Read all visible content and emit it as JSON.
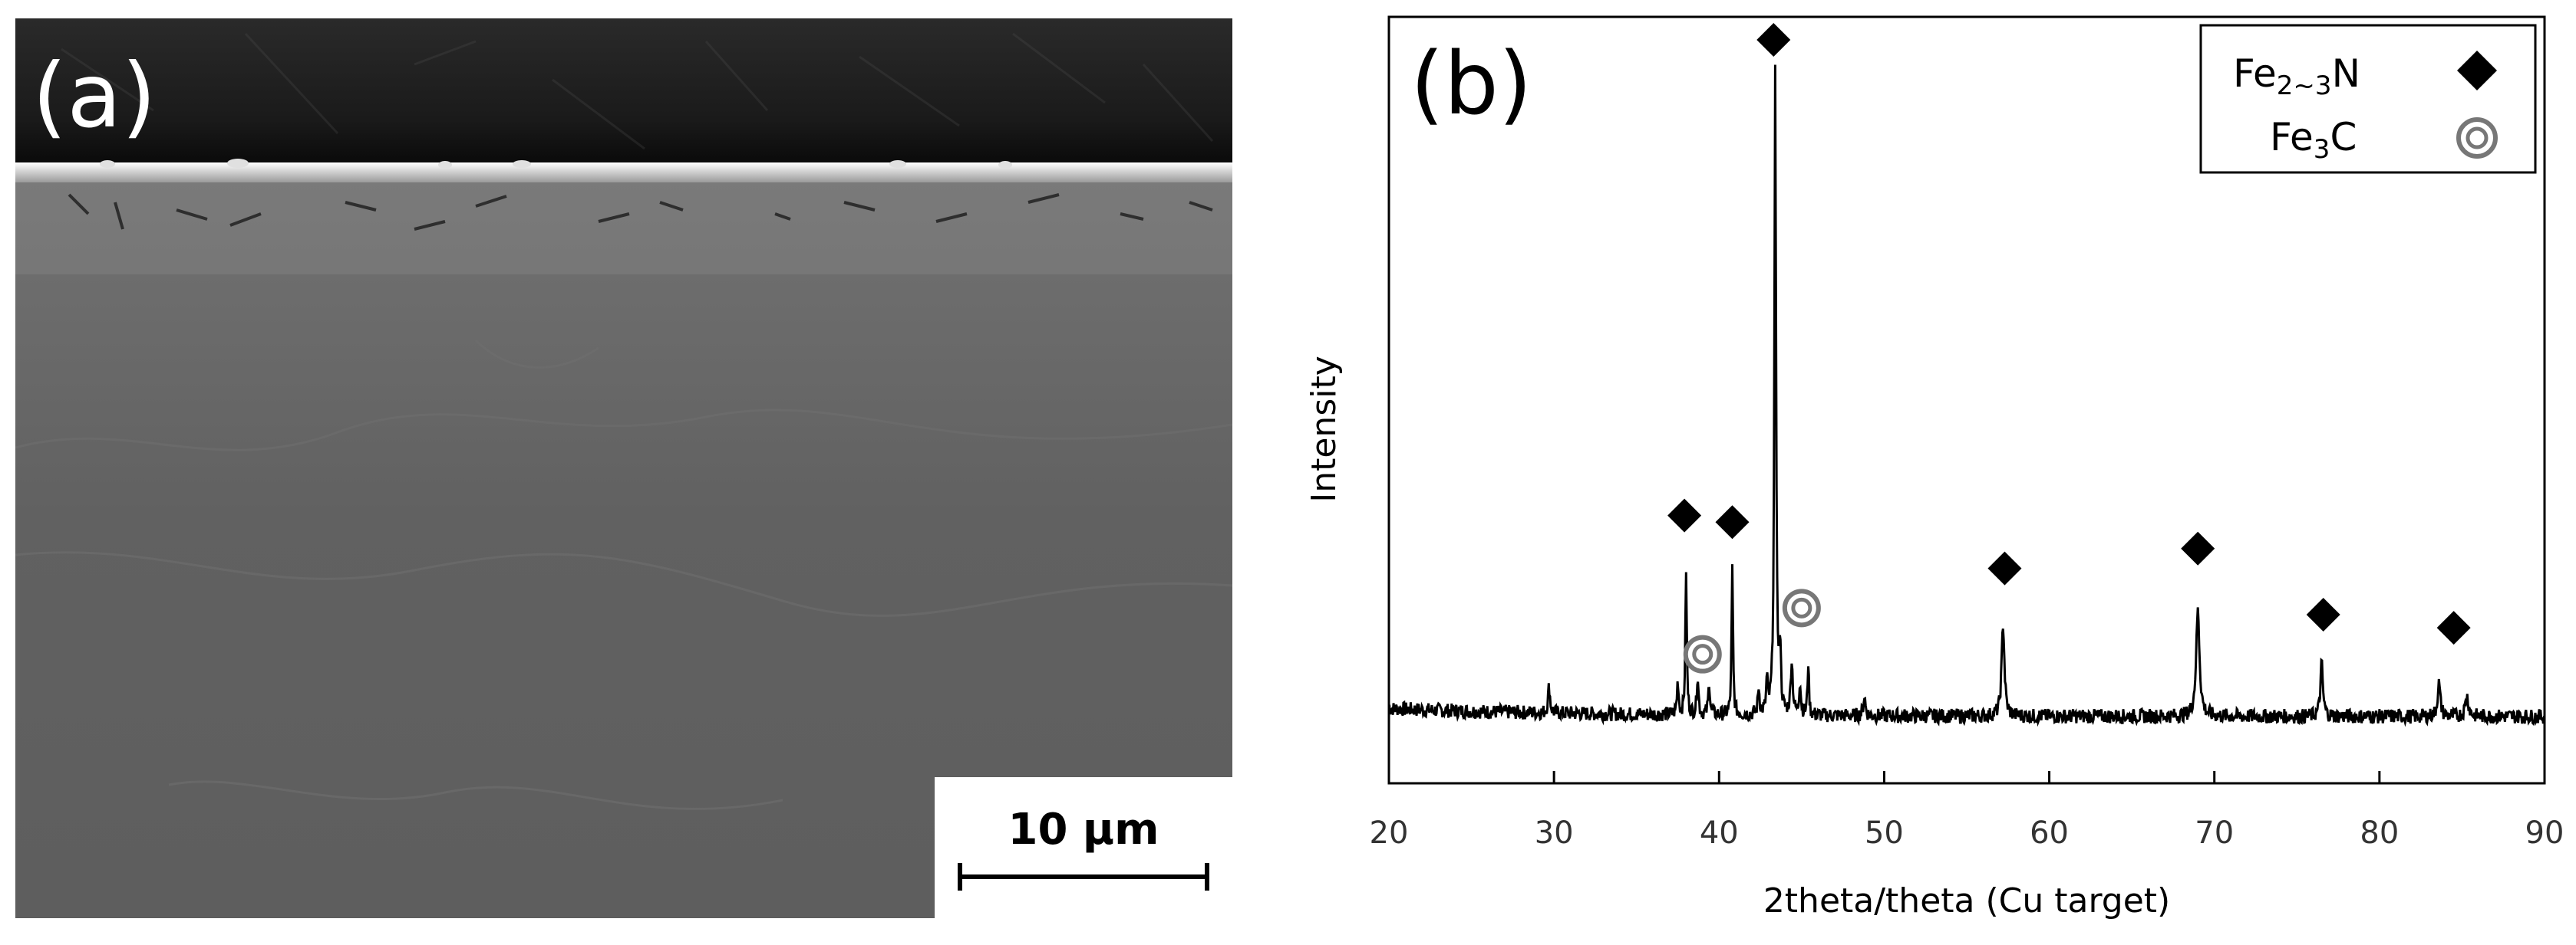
{
  "panel_a": {
    "label": "(a)",
    "scale_bar": "10 μm",
    "image_description": "SEM cross-section micrograph of nitrided steel surface layer"
  },
  "panel_b": {
    "label": "(b)"
  },
  "chart_data": {
    "type": "line",
    "title": "",
    "xlabel": "2theta/theta (Cu target)",
    "ylabel": "Intensity",
    "xlim": [
      20,
      90
    ],
    "xticks": [
      20,
      30,
      40,
      50,
      60,
      70,
      80,
      90
    ],
    "y_ticks_shown": false,
    "grid": false,
    "legend_position": "top-right",
    "legend": [
      {
        "name": "Fe",
        "sub": "2~3",
        "suffix": "N",
        "marker": "diamond"
      },
      {
        "name": "Fe",
        "sub": "3",
        "suffix": "C",
        "marker": "double-circle"
      }
    ],
    "peaks": [
      {
        "x": 29.7,
        "y": 0.04,
        "w": 0.15
      },
      {
        "x": 37.5,
        "y": 0.05,
        "w": 0.12
      },
      {
        "x": 38.0,
        "y": 0.22,
        "w": 0.1
      },
      {
        "x": 38.7,
        "y": 0.06,
        "w": 0.12
      },
      {
        "x": 39.4,
        "y": 0.05,
        "w": 0.12
      },
      {
        "x": 40.8,
        "y": 0.22,
        "w": 0.1
      },
      {
        "x": 42.4,
        "y": 0.04,
        "w": 0.12
      },
      {
        "x": 42.9,
        "y": 0.05,
        "w": 0.1
      },
      {
        "x": 43.4,
        "y": 0.97,
        "w": 0.12
      },
      {
        "x": 43.7,
        "y": 0.1,
        "w": 0.1
      },
      {
        "x": 44.4,
        "y": 0.08,
        "w": 0.15
      },
      {
        "x": 44.9,
        "y": 0.05,
        "w": 0.12
      },
      {
        "x": 45.4,
        "y": 0.08,
        "w": 0.1
      },
      {
        "x": 48.8,
        "y": 0.03,
        "w": 0.15
      },
      {
        "x": 57.2,
        "y": 0.14,
        "w": 0.2
      },
      {
        "x": 69.0,
        "y": 0.16,
        "w": 0.25
      },
      {
        "x": 76.5,
        "y": 0.08,
        "w": 0.18
      },
      {
        "x": 83.6,
        "y": 0.05,
        "w": 0.2
      },
      {
        "x": 85.3,
        "y": 0.03,
        "w": 0.25
      }
    ],
    "annotations": [
      {
        "marker": "diamond",
        "x": 43.3,
        "y": 1.0
      },
      {
        "marker": "diamond",
        "x": 37.9,
        "y": 0.28
      },
      {
        "marker": "diamond",
        "x": 40.8,
        "y": 0.27
      },
      {
        "marker": "diamond",
        "x": 57.3,
        "y": 0.2
      },
      {
        "marker": "diamond",
        "x": 69.0,
        "y": 0.23
      },
      {
        "marker": "diamond",
        "x": 76.6,
        "y": 0.13
      },
      {
        "marker": "diamond",
        "x": 84.5,
        "y": 0.11
      },
      {
        "marker": "double-circle",
        "x": 39.0,
        "y": 0.07
      },
      {
        "marker": "double-circle",
        "x": 45.0,
        "y": 0.14
      }
    ]
  }
}
